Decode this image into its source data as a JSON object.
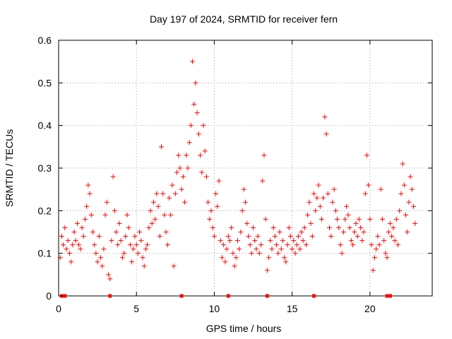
{
  "chart_data": {
    "type": "scatter",
    "title": "Day 197 of 2024, SRMTID for receiver fern",
    "xlabel": "GPS time / hours",
    "ylabel": "SRMTID / TECUs",
    "xlim": [
      0,
      24
    ],
    "ylim": [
      0,
      0.6
    ],
    "xticks": [
      0,
      5,
      10,
      15,
      20
    ],
    "yticks": [
      0,
      0.1,
      0.2,
      0.3,
      0.4,
      0.5,
      0.6
    ],
    "xtick_labels": [
      "0",
      "5",
      "10",
      "15",
      "20"
    ],
    "ytick_labels": [
      "0",
      "0.1",
      "0.2",
      "0.3",
      "0.4",
      "0.5",
      "0.6"
    ],
    "grid": true,
    "marker": "plus",
    "color": "#ff0000",
    "series": [
      {
        "name": "SRMTID",
        "points": [
          [
            0.1,
            0.09
          ],
          [
            0.2,
            0.14
          ],
          [
            0.3,
            0.12
          ],
          [
            0.4,
            0.16
          ],
          [
            0.5,
            0.11
          ],
          [
            0.6,
            0.13
          ],
          [
            0.7,
            0.1
          ],
          [
            0.8,
            0.08
          ],
          [
            0.9,
            0.12
          ],
          [
            1.0,
            0.15
          ],
          [
            1.1,
            0.13
          ],
          [
            1.2,
            0.17
          ],
          [
            1.3,
            0.12
          ],
          [
            1.4,
            0.11
          ],
          [
            1.5,
            0.16
          ],
          [
            1.6,
            0.14
          ],
          [
            1.7,
            0.18
          ],
          [
            1.8,
            0.21
          ],
          [
            1.9,
            0.26
          ],
          [
            2.0,
            0.24
          ],
          [
            2.1,
            0.19
          ],
          [
            2.2,
            0.15
          ],
          [
            2.3,
            0.12
          ],
          [
            2.4,
            0.1
          ],
          [
            2.5,
            0.08
          ],
          [
            2.6,
            0.14
          ],
          [
            2.7,
            0.09
          ],
          [
            2.8,
            0.07
          ],
          [
            2.9,
            0.11
          ],
          [
            3.0,
            0.19
          ],
          [
            3.1,
            0.22
          ],
          [
            3.2,
            0.05
          ],
          [
            3.3,
            0.04
          ],
          [
            3.4,
            0.13
          ],
          [
            3.5,
            0.28
          ],
          [
            3.6,
            0.2
          ],
          [
            3.7,
            0.15
          ],
          [
            3.8,
            0.12
          ],
          [
            3.9,
            0.17
          ],
          [
            4.0,
            0.13
          ],
          [
            4.1,
            0.09
          ],
          [
            4.2,
            0.1
          ],
          [
            4.3,
            0.14
          ],
          [
            4.4,
            0.19
          ],
          [
            4.5,
            0.16
          ],
          [
            4.6,
            0.12
          ],
          [
            4.7,
            0.08
          ],
          [
            4.8,
            0.11
          ],
          [
            4.9,
            0.14
          ],
          [
            5.0,
            0.12
          ],
          [
            5.1,
            0.1
          ],
          [
            5.2,
            0.15
          ],
          [
            5.3,
            0.13
          ],
          [
            5.4,
            0.09
          ],
          [
            5.5,
            0.07
          ],
          [
            5.6,
            0.11
          ],
          [
            5.7,
            0.12
          ],
          [
            5.8,
            0.16
          ],
          [
            5.9,
            0.2
          ],
          [
            6.0,
            0.17
          ],
          [
            6.1,
            0.22
          ],
          [
            6.2,
            0.18
          ],
          [
            6.3,
            0.24
          ],
          [
            6.4,
            0.21
          ],
          [
            6.5,
            0.14
          ],
          [
            6.6,
            0.35
          ],
          [
            6.7,
            0.24
          ],
          [
            6.8,
            0.19
          ],
          [
            6.9,
            0.15
          ],
          [
            7.0,
            0.12
          ],
          [
            7.1,
            0.23
          ],
          [
            7.2,
            0.19
          ],
          [
            7.3,
            0.26
          ],
          [
            7.4,
            0.07
          ],
          [
            7.5,
            0.24
          ],
          [
            7.6,
            0.29
          ],
          [
            7.7,
            0.33
          ],
          [
            7.8,
            0.3
          ],
          [
            7.9,
            0.25
          ],
          [
            8.0,
            0.28
          ],
          [
            8.1,
            0.22
          ],
          [
            8.2,
            0.33
          ],
          [
            8.3,
            0.3
          ],
          [
            8.4,
            0.36
          ],
          [
            8.5,
            0.4
          ],
          [
            8.6,
            0.55
          ],
          [
            8.7,
            0.45
          ],
          [
            8.8,
            0.5
          ],
          [
            8.9,
            0.43
          ],
          [
            9.0,
            0.38
          ],
          [
            9.1,
            0.33
          ],
          [
            9.2,
            0.29
          ],
          [
            9.3,
            0.4
          ],
          [
            9.4,
            0.34
          ],
          [
            9.5,
            0.28
          ],
          [
            9.6,
            0.22
          ],
          [
            9.7,
            0.18
          ],
          [
            9.8,
            0.2
          ],
          [
            9.9,
            0.16
          ],
          [
            10.0,
            0.14
          ],
          [
            10.1,
            0.24
          ],
          [
            10.2,
            0.21
          ],
          [
            10.3,
            0.27
          ],
          [
            10.4,
            0.13
          ],
          [
            10.5,
            0.09
          ],
          [
            10.6,
            0.12
          ],
          [
            10.7,
            0.08
          ],
          [
            10.8,
            0.11
          ],
          [
            10.9,
            0.14
          ],
          [
            11.0,
            0.13
          ],
          [
            11.1,
            0.16
          ],
          [
            11.2,
            0.1
          ],
          [
            11.3,
            0.07
          ],
          [
            11.4,
            0.09
          ],
          [
            11.5,
            0.13
          ],
          [
            11.6,
            0.11
          ],
          [
            11.7,
            0.15
          ],
          [
            11.8,
            0.2
          ],
          [
            11.9,
            0.25
          ],
          [
            12.0,
            0.22
          ],
          [
            12.1,
            0.17
          ],
          [
            12.2,
            0.14
          ],
          [
            12.3,
            0.12
          ],
          [
            12.4,
            0.1
          ],
          [
            12.5,
            0.16
          ],
          [
            12.6,
            0.13
          ],
          [
            12.7,
            0.11
          ],
          [
            12.8,
            0.14
          ],
          [
            12.9,
            0.1
          ],
          [
            13.0,
            0.12
          ],
          [
            13.1,
            0.27
          ],
          [
            13.2,
            0.33
          ],
          [
            13.3,
            0.18
          ],
          [
            13.4,
            0.06
          ],
          [
            13.5,
            0.09
          ],
          [
            13.6,
            0.13
          ],
          [
            13.7,
            0.11
          ],
          [
            13.8,
            0.16
          ],
          [
            13.9,
            0.14
          ],
          [
            14.0,
            0.12
          ],
          [
            14.1,
            0.1
          ],
          [
            14.2,
            0.15
          ],
          [
            14.3,
            0.11
          ],
          [
            14.4,
            0.13
          ],
          [
            14.5,
            0.09
          ],
          [
            14.6,
            0.08
          ],
          [
            14.7,
            0.12
          ],
          [
            14.8,
            0.16
          ],
          [
            14.9,
            0.14
          ],
          [
            15.0,
            0.11
          ],
          [
            15.1,
            0.13
          ],
          [
            15.2,
            0.1
          ],
          [
            15.3,
            0.12
          ],
          [
            15.4,
            0.14
          ],
          [
            15.5,
            0.11
          ],
          [
            15.6,
            0.15
          ],
          [
            15.7,
            0.13
          ],
          [
            15.8,
            0.16
          ],
          [
            15.9,
            0.12
          ],
          [
            16.0,
            0.19
          ],
          [
            16.1,
            0.22
          ],
          [
            16.2,
            0.17
          ],
          [
            16.3,
            0.14
          ],
          [
            16.4,
            0.24
          ],
          [
            16.5,
            0.2
          ],
          [
            16.6,
            0.23
          ],
          [
            16.7,
            0.26
          ],
          [
            16.8,
            0.21
          ],
          [
            16.9,
            0.18
          ],
          [
            17.0,
            0.23
          ],
          [
            17.1,
            0.42
          ],
          [
            17.2,
            0.38
          ],
          [
            17.3,
            0.24
          ],
          [
            17.4,
            0.16
          ],
          [
            17.5,
            0.14
          ],
          [
            17.6,
            0.22
          ],
          [
            17.7,
            0.25
          ],
          [
            17.8,
            0.2
          ],
          [
            17.9,
            0.18
          ],
          [
            18.0,
            0.16
          ],
          [
            18.1,
            0.12
          ],
          [
            18.2,
            0.1
          ],
          [
            18.3,
            0.15
          ],
          [
            18.4,
            0.18
          ],
          [
            18.5,
            0.21
          ],
          [
            18.6,
            0.19
          ],
          [
            18.7,
            0.16
          ],
          [
            18.8,
            0.13
          ],
          [
            18.9,
            0.12
          ],
          [
            19.0,
            0.15
          ],
          [
            19.1,
            0.17
          ],
          [
            19.2,
            0.14
          ],
          [
            19.3,
            0.18
          ],
          [
            19.4,
            0.16
          ],
          [
            19.5,
            0.13
          ],
          [
            19.6,
            0.15
          ],
          [
            19.7,
            0.24
          ],
          [
            19.8,
            0.33
          ],
          [
            19.9,
            0.26
          ],
          [
            20.0,
            0.18
          ],
          [
            20.1,
            0.12
          ],
          [
            20.2,
            0.06
          ],
          [
            20.3,
            0.09
          ],
          [
            20.4,
            0.11
          ],
          [
            20.5,
            0.14
          ],
          [
            20.6,
            0.12
          ],
          [
            20.7,
            0.25
          ],
          [
            20.8,
            0.18
          ],
          [
            20.9,
            0.13
          ],
          [
            21.0,
            0.1
          ],
          [
            21.1,
            0.09
          ],
          [
            21.2,
            0.15
          ],
          [
            21.3,
            0.17
          ],
          [
            21.4,
            0.14
          ],
          [
            21.5,
            0.16
          ],
          [
            21.6,
            0.13
          ],
          [
            21.7,
            0.18
          ],
          [
            21.8,
            0.12
          ],
          [
            21.9,
            0.2
          ],
          [
            22.0,
            0.24
          ],
          [
            22.1,
            0.31
          ],
          [
            22.2,
            0.26
          ],
          [
            22.3,
            0.19
          ],
          [
            22.4,
            0.15
          ],
          [
            22.5,
            0.22
          ],
          [
            22.6,
            0.28
          ],
          [
            22.7,
            0.25
          ],
          [
            22.8,
            0.21
          ],
          [
            22.9,
            0.17
          ]
        ]
      }
    ],
    "data_gap_markers_x": [
      0.2,
      0.4,
      3.3,
      7.9,
      10.9,
      13.4,
      16.4,
      21.1,
      21.3
    ]
  }
}
